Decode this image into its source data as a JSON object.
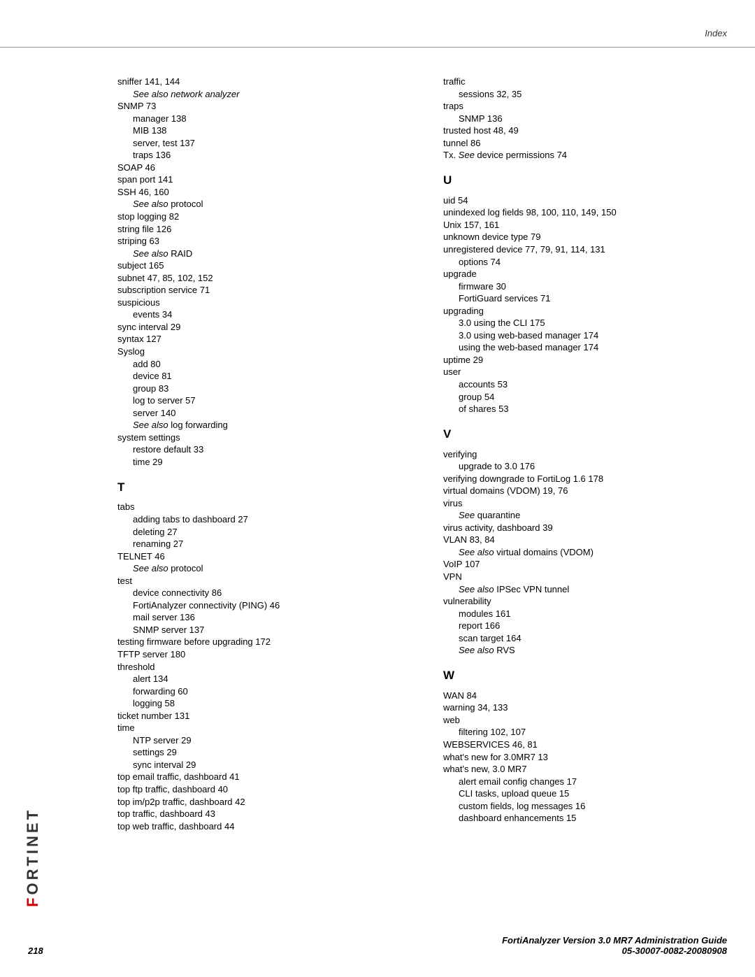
{
  "header": {
    "section": "Index"
  },
  "footer": {
    "page": "218",
    "guide": "FortiAnalyzer Version 3.0 MR7 Administration Guide",
    "docnum": "05-30007-0082-20080908"
  },
  "logo": {
    "text_red": "F",
    "text_rest": "ORTINET"
  },
  "col_left": [
    {
      "t": "sniffer 141, 144",
      "i": 0
    },
    {
      "t": "See also  network analyzer",
      "i": 1,
      "it": true
    },
    {
      "t": "SNMP 73",
      "i": 0
    },
    {
      "t": "manager 138",
      "i": 1
    },
    {
      "t": "MIB 138",
      "i": 1
    },
    {
      "t": "server, test 137",
      "i": 1
    },
    {
      "t": "traps 136",
      "i": 1
    },
    {
      "t": "SOAP 46",
      "i": 0
    },
    {
      "t": "span port 141",
      "i": 0
    },
    {
      "t": "SSH 46, 160",
      "i": 0
    },
    {
      "t": "See also protocol",
      "i": 1,
      "it": "partial",
      "it_text": "See also",
      "rest": " protocol"
    },
    {
      "t": "stop logging 82",
      "i": 0
    },
    {
      "t": "string file 126",
      "i": 0
    },
    {
      "t": "striping 63",
      "i": 0
    },
    {
      "t": "See also RAID",
      "i": 1,
      "it": "partial",
      "it_text": "See also",
      "rest": " RAID"
    },
    {
      "t": "subject 165",
      "i": 0
    },
    {
      "t": "subnet 47, 85, 102, 152",
      "i": 0
    },
    {
      "t": "subscription service 71",
      "i": 0
    },
    {
      "t": "suspicious",
      "i": 0
    },
    {
      "t": "events 34",
      "i": 1
    },
    {
      "t": "sync interval 29",
      "i": 0
    },
    {
      "t": "syntax 127",
      "i": 0
    },
    {
      "t": "Syslog",
      "i": 0
    },
    {
      "t": "add 80",
      "i": 1
    },
    {
      "t": "device 81",
      "i": 1
    },
    {
      "t": "group 83",
      "i": 1
    },
    {
      "t": "log to server 57",
      "i": 1
    },
    {
      "t": "server 140",
      "i": 1
    },
    {
      "t": "See also log forwarding",
      "i": 1,
      "it": "partial",
      "it_text": "See also",
      "rest": " log forwarding"
    },
    {
      "t": "system settings",
      "i": 0
    },
    {
      "t": "restore default 33",
      "i": 1
    },
    {
      "t": "time 29",
      "i": 1
    },
    {
      "letter": "T"
    },
    {
      "t": "tabs",
      "i": 0
    },
    {
      "t": "adding tabs to dashboard 27",
      "i": 1
    },
    {
      "t": "deleting 27",
      "i": 1
    },
    {
      "t": "renaming 27",
      "i": 1
    },
    {
      "t": "TELNET 46",
      "i": 0
    },
    {
      "t": "See also protocol",
      "i": 1,
      "it": "partial",
      "it_text": "See also",
      "rest": " protocol"
    },
    {
      "t": "test",
      "i": 0
    },
    {
      "t": "device connectivity 86",
      "i": 1
    },
    {
      "t": "FortiAnalyzer connectivity (PING) 46",
      "i": 1
    },
    {
      "t": "mail server 136",
      "i": 1
    },
    {
      "t": "SNMP server 137",
      "i": 1
    },
    {
      "t": "testing firmware before upgrading 172",
      "i": 0
    },
    {
      "t": "TFTP server 180",
      "i": 0
    },
    {
      "t": "threshold",
      "i": 0
    },
    {
      "t": "alert 134",
      "i": 1
    },
    {
      "t": "forwarding 60",
      "i": 1
    },
    {
      "t": "logging 58",
      "i": 1
    },
    {
      "t": "ticket number 131",
      "i": 0
    },
    {
      "t": "time",
      "i": 0
    },
    {
      "t": "NTP server 29",
      "i": 1
    },
    {
      "t": "settings 29",
      "i": 1
    },
    {
      "t": "sync interval 29",
      "i": 1
    },
    {
      "t": "top email traffic, dashboard 41",
      "i": 0
    },
    {
      "t": "top ftp traffic, dashboard 40",
      "i": 0
    },
    {
      "t": "top im/p2p traffic, dashboard 42",
      "i": 0
    },
    {
      "t": "top traffic, dashboard 43",
      "i": 0
    },
    {
      "t": "top web traffic, dashboard 44",
      "i": 0
    }
  ],
  "col_right": [
    {
      "t": "traffic",
      "i": 0
    },
    {
      "t": "sessions 32, 35",
      "i": 1
    },
    {
      "t": "traps",
      "i": 0
    },
    {
      "t": "SNMP 136",
      "i": 1
    },
    {
      "t": "trusted host 48, 49",
      "i": 0
    },
    {
      "t": "tunnel 86",
      "i": 0
    },
    {
      "t": "Tx. See  device permissions 74",
      "i": 0,
      "it": "partial2",
      "pre": "Tx. ",
      "it_text": "See ",
      "rest": " device permissions 74"
    },
    {
      "letter": "U"
    },
    {
      "t": "uid 54",
      "i": 0
    },
    {
      "t": "unindexed log fields 98, 100, 110, 149, 150",
      "i": 0
    },
    {
      "t": "Unix 157, 161",
      "i": 0
    },
    {
      "t": "unknown device type 79",
      "i": 0
    },
    {
      "t": "unregistered device 77, 79, 91, 114, 131",
      "i": 0
    },
    {
      "t": "options 74",
      "i": 1
    },
    {
      "t": "upgrade",
      "i": 0
    },
    {
      "t": "firmware 30",
      "i": 1
    },
    {
      "t": "FortiGuard services 71",
      "i": 1
    },
    {
      "t": "upgrading",
      "i": 0
    },
    {
      "t": "3.0 using the CLI 175",
      "i": 1
    },
    {
      "t": "3.0 using web-based manager 174",
      "i": 1
    },
    {
      "t": "using the web-based manager 174",
      "i": 1
    },
    {
      "t": "uptime 29",
      "i": 0
    },
    {
      "t": "user",
      "i": 0
    },
    {
      "t": "accounts 53",
      "i": 1
    },
    {
      "t": "group 54",
      "i": 1
    },
    {
      "t": "of shares 53",
      "i": 1
    },
    {
      "letter": "V"
    },
    {
      "t": "verifying",
      "i": 0
    },
    {
      "t": "upgrade to 3.0 176",
      "i": 1
    },
    {
      "t": "verifying downgrade to FortiLog 1.6 178",
      "i": 0
    },
    {
      "t": "virtual domains (VDOM) 19, 76",
      "i": 0
    },
    {
      "t": "virus",
      "i": 0
    },
    {
      "t": "See  quarantine",
      "i": 1,
      "it": "partial",
      "it_text": "See ",
      "rest": " quarantine"
    },
    {
      "t": "virus activity, dashboard 39",
      "i": 0
    },
    {
      "t": "VLAN 83, 84",
      "i": 0
    },
    {
      "t": "See also virtual domains (VDOM)",
      "i": 1,
      "it": "partial",
      "it_text": "See also",
      "rest": " virtual domains (VDOM)"
    },
    {
      "t": "VoIP 107",
      "i": 0
    },
    {
      "t": "VPN",
      "i": 0
    },
    {
      "t": "See also IPSec VPN tunnel",
      "i": 1,
      "it": "partial",
      "it_text": "See also",
      "rest": " IPSec VPN tunnel"
    },
    {
      "t": "vulnerability",
      "i": 0
    },
    {
      "t": "modules 161",
      "i": 1
    },
    {
      "t": "report 166",
      "i": 1
    },
    {
      "t": "scan target 164",
      "i": 1
    },
    {
      "t": "See also RVS",
      "i": 1,
      "it": "partial",
      "it_text": "See also",
      "rest": " RVS"
    },
    {
      "letter": "W"
    },
    {
      "t": "WAN 84",
      "i": 0
    },
    {
      "t": "warning 34, 133",
      "i": 0
    },
    {
      "t": "web",
      "i": 0
    },
    {
      "t": "filtering 102, 107",
      "i": 1
    },
    {
      "t": "WEBSERVICES 46, 81",
      "i": 0
    },
    {
      "t": "what's new for 3.0MR7 13",
      "i": 0
    },
    {
      "t": "what's new, 3.0 MR7",
      "i": 0
    },
    {
      "t": "alert email config changes 17",
      "i": 1
    },
    {
      "t": "CLI tasks, upload queue 15",
      "i": 1
    },
    {
      "t": "custom fields, log messages 16",
      "i": 1
    },
    {
      "t": "dashboard enhancements 15",
      "i": 1
    }
  ]
}
